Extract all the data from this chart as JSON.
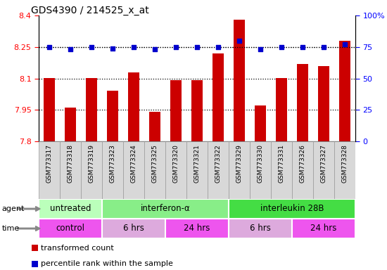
{
  "title": "GDS4390 / 214525_x_at",
  "samples": [
    "GSM773317",
    "GSM773318",
    "GSM773319",
    "GSM773323",
    "GSM773324",
    "GSM773325",
    "GSM773320",
    "GSM773321",
    "GSM773322",
    "GSM773329",
    "GSM773330",
    "GSM773331",
    "GSM773326",
    "GSM773327",
    "GSM773328"
  ],
  "bar_values": [
    8.1,
    7.96,
    8.1,
    8.04,
    8.13,
    7.94,
    8.09,
    8.09,
    8.22,
    8.38,
    7.97,
    8.1,
    8.17,
    8.16,
    8.28
  ],
  "percentile_values": [
    75,
    73,
    75,
    74,
    75,
    73,
    75,
    75,
    75,
    80,
    73,
    75,
    75,
    75,
    77
  ],
  "bar_color": "#cc0000",
  "dot_color": "#0000cc",
  "ylim_left": [
    7.8,
    8.4
  ],
  "ylim_right": [
    0,
    100
  ],
  "yticks_left": [
    7.8,
    7.95,
    8.1,
    8.25,
    8.4
  ],
  "yticks_right": [
    0,
    25,
    50,
    75,
    100
  ],
  "ytick_labels_left": [
    "7.8",
    "7.95",
    "8.1",
    "8.25",
    "8.4"
  ],
  "ytick_labels_right": [
    "0",
    "25",
    "50",
    "75",
    "100%"
  ],
  "hline_values": [
    7.95,
    8.1,
    8.25
  ],
  "plot_bg_color": "#ffffff",
  "xtick_box_color": "#d8d8d8",
  "xtick_box_border": "#999999",
  "agent_groups": [
    {
      "label": "untreated",
      "start": 0,
      "end": 3,
      "color": "#bbffbb"
    },
    {
      "label": "interferon-α",
      "start": 3,
      "end": 9,
      "color": "#88ee88"
    },
    {
      "label": "interleukin 28B",
      "start": 9,
      "end": 15,
      "color": "#44dd44"
    }
  ],
  "time_groups": [
    {
      "label": "control",
      "start": 0,
      "end": 3,
      "color": "#ee55ee"
    },
    {
      "label": "6 hrs",
      "start": 3,
      "end": 6,
      "color": "#ddaadd"
    },
    {
      "label": "24 hrs",
      "start": 6,
      "end": 9,
      "color": "#ee55ee"
    },
    {
      "label": "6 hrs",
      "start": 9,
      "end": 12,
      "color": "#ddaadd"
    },
    {
      "label": "24 hrs",
      "start": 12,
      "end": 15,
      "color": "#ee55ee"
    }
  ],
  "legend_red_label": "transformed count",
  "legend_blue_label": "percentile rank within the sample",
  "agent_label": "agent",
  "time_label": "time",
  "arrow_color": "#888888"
}
